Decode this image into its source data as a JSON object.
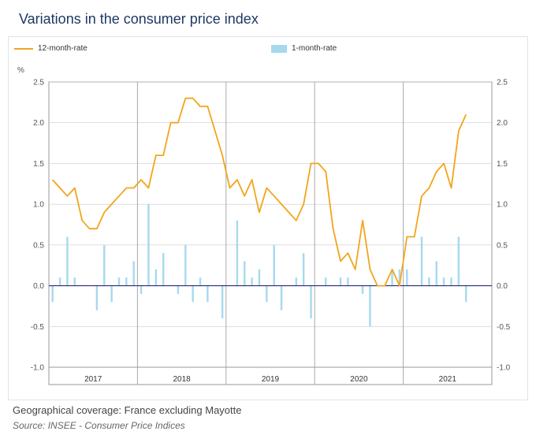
{
  "page": {
    "title": "Variations in the consumer price index",
    "footnote": "Geographical coverage: France excluding Mayotte",
    "source": "Source: INSEE - Consumer Price Indices"
  },
  "colors": {
    "line": "#f2a51c",
    "bar": "#a6d9ee",
    "zero": "#2a2a7a",
    "grid": "#cccccc",
    "title": "#1f3864"
  },
  "chart_data": {
    "type": "line",
    "title": "Variations in the consumer price index",
    "ylabel": "%",
    "ylim": [
      -1.0,
      2.5
    ],
    "yticks": [
      "2.5",
      "2.0",
      "1.5",
      "1.0",
      "0.5",
      "0.0",
      "-0.5",
      "-1.0"
    ],
    "ytick_values": [
      2.5,
      2.0,
      1.5,
      1.0,
      0.5,
      0.0,
      -0.5,
      -1.0
    ],
    "years": [
      "2017",
      "2018",
      "2019",
      "2020",
      "2021"
    ],
    "x_start": "2017-01",
    "legend_position": "top",
    "grid": true,
    "series": [
      {
        "name": "12-month-rate",
        "type": "line",
        "values": [
          1.3,
          1.2,
          1.1,
          1.2,
          0.8,
          0.7,
          0.7,
          0.9,
          1.0,
          1.1,
          1.2,
          1.2,
          1.3,
          1.2,
          1.6,
          1.6,
          2.0,
          2.0,
          2.3,
          2.3,
          2.2,
          2.2,
          1.9,
          1.6,
          1.2,
          1.3,
          1.1,
          1.3,
          0.9,
          1.2,
          1.1,
          1.0,
          0.9,
          0.8,
          1.0,
          1.5,
          1.5,
          1.4,
          0.7,
          0.3,
          0.4,
          0.2,
          0.8,
          0.2,
          0.0,
          0.0,
          0.2,
          0.0,
          0.6,
          0.6,
          1.1,
          1.2,
          1.4,
          1.5,
          1.2,
          1.9,
          2.1
        ]
      },
      {
        "name": "1-month-rate",
        "type": "bar",
        "values": [
          -0.2,
          0.1,
          0.6,
          0.1,
          0.0,
          0.0,
          -0.3,
          0.5,
          -0.2,
          0.1,
          0.1,
          0.3,
          -0.1,
          1.0,
          0.2,
          0.4,
          0.0,
          -0.1,
          0.5,
          -0.2,
          0.1,
          -0.2,
          0.0,
          -0.4,
          0.0,
          0.8,
          0.3,
          0.1,
          0.2,
          -0.2,
          0.5,
          -0.3,
          0.0,
          0.1,
          0.4,
          -0.4,
          0.0,
          0.1,
          0.0,
          0.1,
          0.1,
          0.0,
          -0.1,
          -0.5,
          0.0,
          0.0,
          0.2,
          0.2,
          0.2,
          0.0,
          0.6,
          0.1,
          0.3,
          0.1,
          0.1,
          0.6,
          -0.2
        ]
      }
    ]
  }
}
